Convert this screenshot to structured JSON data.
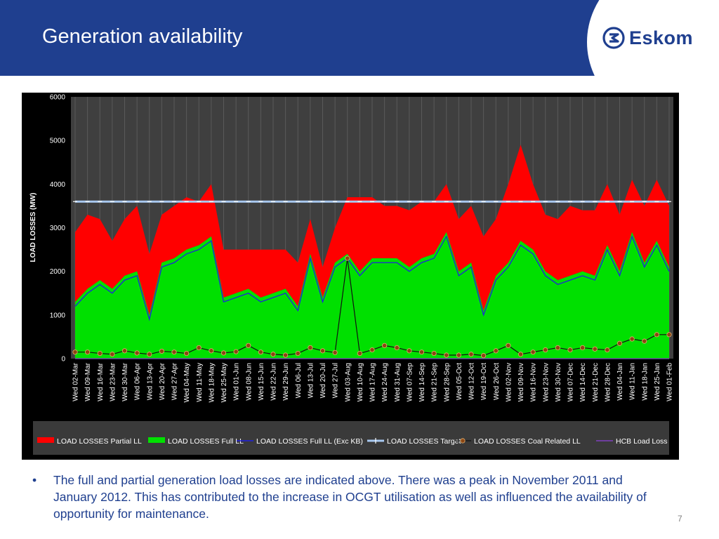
{
  "slide": {
    "title": "Generation availability",
    "bullet": "The full and partial generation load losses are indicated above. There was a peak in November 2011 and January 2012. This has contributed to the increase in OCGT utilisation as well as influenced the availability of opportunity for maintenance.",
    "page_number": "7"
  },
  "logo": {
    "name": "Eskom",
    "icon": "eskom-logo-icon"
  },
  "colors": {
    "header": "#1f3f8f",
    "partial": "#ff0000",
    "full": "#00e000",
    "full_exc": "#2020e0",
    "target": "#a8c8f0",
    "coal": "#8b4513",
    "hcb": "#8040c0"
  },
  "chart_data": {
    "type": "area",
    "title": "",
    "xlabel": "",
    "ylabel": "LOAD LOSSES (MW)",
    "ylim": [
      0,
      6000
    ],
    "yticks": [
      0,
      1000,
      2000,
      3000,
      4000,
      5000,
      6000
    ],
    "grid": true,
    "legend_position": "bottom",
    "categories": [
      "Wed 02-Mar",
      "Wed 09-Mar",
      "Wed 16-Mar",
      "Wed 23-Mar",
      "Wed 30-Mar",
      "Wed 06-Apr",
      "Wed 13-Apr",
      "Wed 20-Apr",
      "Wed 27-Apr",
      "Wed 04-May",
      "Wed 11-May",
      "Wed 18-May",
      "Wed 25-May",
      "Wed 01-Jun",
      "Wed 08-Jun",
      "Wed 15-Jun",
      "Wed 22-Jun",
      "Wed 29-Jun",
      "Wed 06-Jul",
      "Wed 13-Jul",
      "Wed 20-Jul",
      "Wed 27-Jul",
      "Wed 03-Aug",
      "Wed 10-Aug",
      "Wed 17-Aug",
      "Wed 24-Aug",
      "Wed 31-Aug",
      "Wed 07-Sep",
      "Wed 14-Sep",
      "Wed 21-Sep",
      "Wed 28-Sep",
      "Wed 05-Oct",
      "Wed 12-Oct",
      "Wed 19-Oct",
      "Wed 26-Oct",
      "Wed 02-Nov",
      "Wed 09-Nov",
      "Wed 16-Nov",
      "Wed 23-Nov",
      "Wed 30-Nov",
      "Wed 07-Dec",
      "Wed 14-Dec",
      "Wed 21-Dec",
      "Wed 28-Dec",
      "Wed 04-Jan",
      "Wed 11-Jan",
      "Wed 18-Jan",
      "Wed 25-Jan",
      "Wed 01-Feb"
    ],
    "series": [
      {
        "name": "LOAD LOSSES Partial LL",
        "type": "area",
        "stack": true,
        "values": [
          1600,
          1700,
          1400,
          1100,
          1300,
          1500,
          1400,
          1100,
          1200,
          1200,
          1000,
          1200,
          1100,
          1000,
          900,
          1100,
          1000,
          900,
          1000,
          800,
          700,
          800,
          1300,
          1700,
          1400,
          1200,
          1200,
          1300,
          1300,
          1200,
          1100,
          1200,
          1300,
          1700,
          1300,
          1800,
          2200,
          1500,
          1300,
          1400,
          1600,
          1400,
          1500,
          1400,
          1300,
          1200,
          1300,
          1400,
          1400
        ]
      },
      {
        "name": "LOAD LOSSES Full LL",
        "type": "area",
        "stack": true,
        "values": [
          1300,
          1600,
          1800,
          1600,
          1900,
          2000,
          1000,
          2200,
          2300,
          2500,
          2600,
          2800,
          1400,
          1500,
          1600,
          1400,
          1500,
          1600,
          1200,
          2400,
          1400,
          2200,
          2400,
          2000,
          2300,
          2300,
          2300,
          2100,
          2300,
          2400,
          2900,
          2000,
          2200,
          1100,
          1900,
          2200,
          2700,
          2500,
          2000,
          1800,
          1900,
          2000,
          1900,
          2600,
          2000,
          2900,
          2200,
          2700,
          2100
        ]
      },
      {
        "name": "LOAD LOSSES Full LL (Exc KB)",
        "type": "line",
        "values": [
          1200,
          1500,
          1700,
          1500,
          1800,
          1900,
          900,
          2100,
          2200,
          2400,
          2500,
          2700,
          1300,
          1400,
          1500,
          1300,
          1400,
          1500,
          1100,
          2300,
          1300,
          2100,
          2300,
          1900,
          2200,
          2200,
          2200,
          2000,
          2200,
          2300,
          2800,
          1900,
          2100,
          1000,
          1800,
          2100,
          2600,
          2400,
          1900,
          1700,
          1800,
          1900,
          1800,
          2500,
          1900,
          2800,
          2100,
          2600,
          2000
        ]
      },
      {
        "name": "LOAD LOSSES Target",
        "type": "line",
        "values": [
          3600,
          3600,
          3600,
          3600,
          3600,
          3600,
          3600,
          3600,
          3600,
          3600,
          3600,
          3600,
          3600,
          3600,
          3600,
          3600,
          3600,
          3600,
          3600,
          3600,
          3600,
          3600,
          3600,
          3600,
          3600,
          3600,
          3600,
          3600,
          3600,
          3600,
          3600,
          3600,
          3600,
          3600,
          3600,
          3600,
          3600,
          3600,
          3600,
          3600,
          3600,
          3600,
          3600,
          3600,
          3600,
          3600,
          3600,
          3600,
          3600
        ]
      },
      {
        "name": "LOAD LOSSES Coal Related LL",
        "type": "line-marker",
        "values": [
          150,
          150,
          120,
          100,
          180,
          130,
          100,
          170,
          150,
          120,
          250,
          180,
          130,
          160,
          300,
          150,
          100,
          80,
          120,
          250,
          180,
          140,
          2300,
          120,
          200,
          300,
          250,
          180,
          150,
          120,
          80,
          80,
          100,
          70,
          180,
          300,
          100,
          150,
          200,
          250,
          200,
          250,
          220,
          200,
          350,
          450,
          400,
          550,
          550
        ]
      },
      {
        "name": "HCB Load Loss",
        "type": "line",
        "values": [
          0,
          0,
          0,
          0,
          0,
          0,
          0,
          0,
          0,
          0,
          0,
          0,
          0,
          0,
          0,
          0,
          0,
          0,
          0,
          0,
          0,
          0,
          0,
          0,
          0,
          0,
          0,
          0,
          0,
          0,
          0,
          0,
          0,
          0,
          0,
          0,
          0,
          0,
          0,
          0,
          0,
          0,
          0,
          0,
          0,
          0,
          0,
          0,
          0
        ]
      }
    ]
  }
}
